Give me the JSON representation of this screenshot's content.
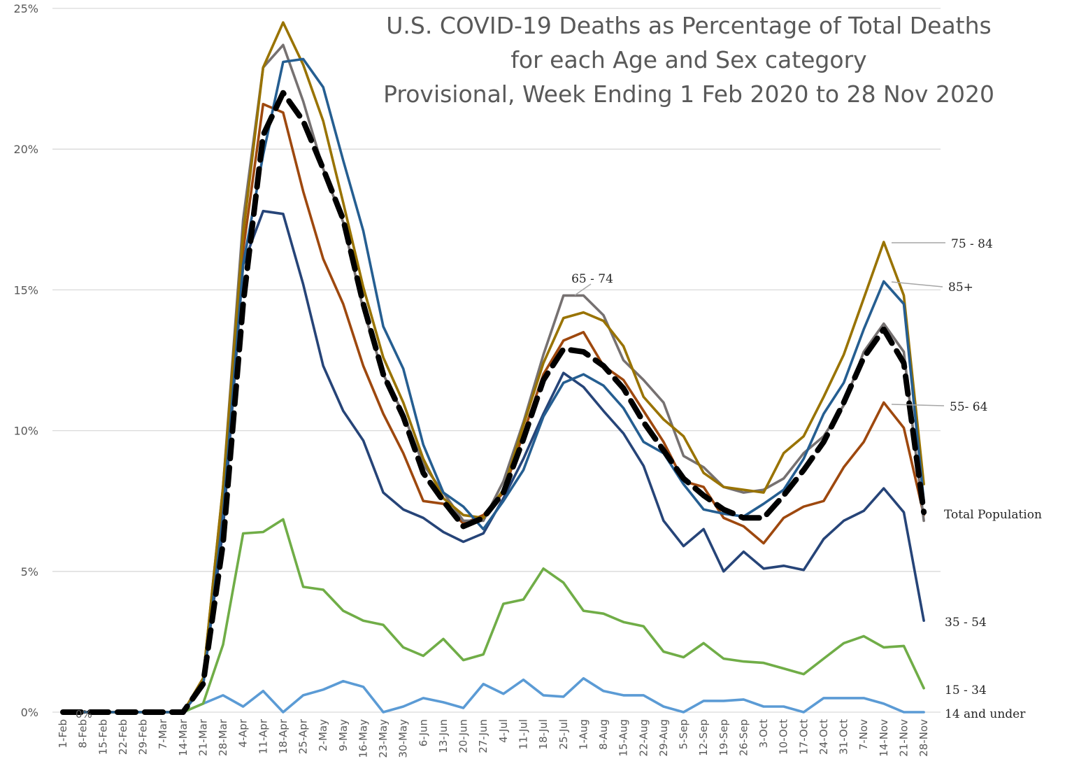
{
  "chart_data": {
    "type": "line",
    "title_lines": [
      "U.S. COVID-19 Deaths as Percentage of Total Deaths",
      "for each Age and Sex category",
      "Provisional, Week Ending 1 Feb 2020 to 28 Nov 2020"
    ],
    "xlabel": "",
    "ylabel": "",
    "ylim": [
      0,
      25
    ],
    "y_ticks": [
      "0%",
      "5%",
      "10%",
      "15%",
      "20%",
      "25%"
    ],
    "grid": true,
    "legend": "none (series labeled at right edge)",
    "x": [
      "1-Feb",
      "8-Feb",
      "15-Feb",
      "22-Feb",
      "29-Feb",
      "7-Mar",
      "14-Mar",
      "21-Mar",
      "28-Mar",
      "4-Apr",
      "11-Apr",
      "18-Apr",
      "25-Apr",
      "2-May",
      "9-May",
      "16-May",
      "23-May",
      "30-May",
      "6-Jun",
      "13-Jun",
      "20-Jun",
      "27-Jun",
      "4-Jul",
      "11-Jul",
      "18-Jul",
      "25-Jul",
      "1-Aug",
      "8-Aug",
      "15-Aug",
      "22-Aug",
      "29-Aug",
      "5-Sep",
      "12-Sep",
      "19-Sep",
      "26-Sep",
      "3-Oct",
      "10-Oct",
      "17-Oct",
      "24-Oct",
      "31-Oct",
      "7-Nov",
      "14-Nov",
      "21-Nov",
      "28-Nov"
    ],
    "annotations": [
      "0%"
    ],
    "series": [
      {
        "name": "14 and under",
        "color": "#5b9bd5",
        "dash": false,
        "values": [
          0,
          0,
          0,
          0,
          0,
          0,
          0,
          0.3,
          0.6,
          0.2,
          0.75,
          0,
          0.6,
          0.8,
          1.1,
          0.9,
          0,
          0.2,
          0.5,
          0.35,
          0.15,
          1.0,
          0.65,
          1.15,
          0.6,
          0.55,
          1.2,
          0.75,
          0.6,
          0.6,
          0.2,
          0,
          0.4,
          0.4,
          0.45,
          0.2,
          0.2,
          0,
          0.5,
          0.5,
          0.5,
          0.3,
          0,
          0
        ]
      },
      {
        "name": "15 - 34",
        "color": "#70ad47",
        "dash": false,
        "values": [
          0,
          0,
          0,
          0,
          0,
          0,
          0,
          0.3,
          2.4,
          6.35,
          6.4,
          6.85,
          4.45,
          4.35,
          3.6,
          3.25,
          3.1,
          2.3,
          2.0,
          2.6,
          1.85,
          2.05,
          3.85,
          4.0,
          5.1,
          4.6,
          3.6,
          3.5,
          3.2,
          3.05,
          2.15,
          1.95,
          2.45,
          1.9,
          1.8,
          1.75,
          1.55,
          1.35,
          1.9,
          2.45,
          2.7,
          2.3,
          2.35,
          0.85
        ]
      },
      {
        "name": "35 - 54",
        "color": "#264478",
        "dash": false,
        "values": [
          0,
          0,
          0,
          0,
          0,
          0,
          0,
          1.0,
          6.5,
          15.9,
          17.8,
          17.7,
          15.2,
          12.3,
          10.7,
          9.65,
          7.8,
          7.2,
          6.9,
          6.4,
          6.05,
          6.35,
          7.6,
          9.0,
          10.6,
          12.05,
          11.55,
          10.7,
          9.9,
          8.75,
          6.8,
          5.9,
          6.5,
          5.0,
          5.7,
          5.1,
          5.2,
          5.05,
          6.15,
          6.8,
          7.15,
          7.95,
          7.1,
          3.25
        ]
      },
      {
        "name": "55- 64",
        "color": "#9e480e",
        "dash": false,
        "values": [
          0,
          0,
          0,
          0,
          0,
          0,
          0,
          1.1,
          7.5,
          16.4,
          21.6,
          21.3,
          18.5,
          16.1,
          14.5,
          12.3,
          10.6,
          9.2,
          7.5,
          7.4,
          6.7,
          7.0,
          7.8,
          9.9,
          12.0,
          13.2,
          13.5,
          12.3,
          11.8,
          10.7,
          9.6,
          8.2,
          8.0,
          6.9,
          6.6,
          6.0,
          6.9,
          7.3,
          7.5,
          8.7,
          9.6,
          11.0,
          10.1,
          7.0
        ]
      },
      {
        "name": "65 - 74",
        "color": "#767171",
        "dash": false,
        "values": [
          0,
          0,
          0,
          0,
          0,
          0,
          0,
          1.2,
          8.0,
          17.5,
          22.9,
          23.7,
          21.7,
          19.3,
          17.4,
          14.3,
          12.0,
          10.6,
          8.8,
          7.8,
          6.8,
          6.8,
          8.2,
          10.3,
          12.7,
          14.8,
          14.8,
          14.1,
          12.5,
          11.8,
          11.0,
          9.1,
          8.7,
          8.0,
          7.8,
          7.9,
          8.3,
          9.2,
          9.8,
          10.9,
          12.8,
          13.8,
          12.8,
          6.8
        ]
      },
      {
        "name": "75 - 84",
        "color": "#997300",
        "dash": false,
        "values": [
          0,
          0,
          0,
          0,
          0,
          0,
          0,
          1.2,
          8.0,
          17.0,
          22.9,
          24.5,
          23.0,
          21.0,
          18.1,
          15.1,
          12.6,
          11.0,
          9.0,
          7.6,
          7.0,
          6.9,
          7.9,
          10.2,
          12.4,
          14.0,
          14.2,
          13.9,
          13.0,
          11.2,
          10.4,
          9.8,
          8.5,
          8.0,
          7.9,
          7.8,
          9.2,
          9.8,
          11.2,
          12.7,
          14.7,
          16.7,
          14.8,
          8.1
        ]
      },
      {
        "name": "85+",
        "color": "#255e91",
        "dash": false,
        "values": [
          0,
          0,
          0,
          0,
          0,
          0,
          0,
          0.9,
          7.0,
          15.9,
          19.8,
          23.1,
          23.2,
          22.2,
          19.6,
          17.1,
          13.7,
          12.2,
          9.5,
          7.8,
          7.3,
          6.5,
          7.5,
          8.6,
          10.5,
          11.7,
          12.0,
          11.6,
          10.8,
          9.6,
          9.2,
          8.1,
          7.2,
          7.05,
          6.95,
          7.4,
          7.9,
          9.0,
          10.6,
          11.7,
          13.6,
          15.3,
          14.5,
          7.5
        ]
      },
      {
        "name": "Total Population",
        "color": "#000000",
        "dash": true,
        "values": [
          0,
          0,
          0,
          0,
          0,
          0,
          0,
          1.0,
          6.0,
          14.5,
          20.5,
          22.0,
          21.0,
          19.3,
          17.5,
          14.5,
          12.0,
          10.5,
          8.5,
          7.5,
          6.6,
          6.9,
          7.8,
          9.7,
          11.8,
          12.9,
          12.8,
          12.3,
          11.5,
          10.3,
          9.3,
          8.3,
          7.7,
          7.2,
          6.9,
          6.9,
          7.7,
          8.6,
          9.6,
          11.0,
          12.6,
          13.6,
          12.4,
          7.1
        ]
      }
    ],
    "right_labels": [
      {
        "text": "75 - 84"
      },
      {
        "text": "85+"
      },
      {
        "text": "55- 64"
      },
      {
        "text": "Total Population"
      },
      {
        "text": "35 - 54"
      },
      {
        "text": "15 - 34"
      },
      {
        "text": "14 and under"
      }
    ],
    "inline_labels": [
      {
        "text": "65 - 74"
      }
    ]
  }
}
